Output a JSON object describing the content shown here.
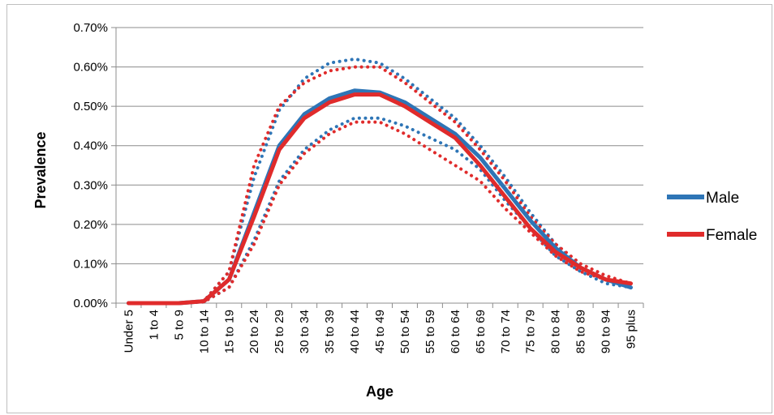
{
  "chart_data": {
    "type": "line",
    "title": "",
    "xlabel": "Age",
    "ylabel": "Prevalence",
    "ylim": [
      0,
      0.007
    ],
    "y_ticks": [
      "0.00%",
      "0.10%",
      "0.20%",
      "0.30%",
      "0.40%",
      "0.50%",
      "0.60%",
      "0.70%"
    ],
    "grid": true,
    "legend_position": "right",
    "categories": [
      "Under 5",
      "1 to 4",
      "5 to 9",
      "10 to 14",
      "15 to 19",
      "20 to 24",
      "25 to 29",
      "30 to 34",
      "35 to 39",
      "40 to 44",
      "45 to 49",
      "50 to 54",
      "55 to 59",
      "60 to 64",
      "65 to 69",
      "70 to 74",
      "75 to 79",
      "80 to 84",
      "85 to 89",
      "90 to 94",
      "95 plus"
    ],
    "series": [
      {
        "name": "Male",
        "color": "#2e75b6",
        "style": "solid",
        "values": [
          0,
          0,
          0,
          5e-05,
          0.0006,
          0.0023,
          0.004,
          0.0048,
          0.0052,
          0.0054,
          0.00535,
          0.0051,
          0.0047,
          0.0043,
          0.0037,
          0.0029,
          0.0021,
          0.0014,
          0.0009,
          0.0006,
          0.0004
        ]
      },
      {
        "name": "Female",
        "color": "#e02b2b",
        "style": "solid",
        "values": [
          0,
          0,
          0,
          5e-05,
          0.0006,
          0.0022,
          0.0039,
          0.0047,
          0.0051,
          0.0053,
          0.0053,
          0.005,
          0.0046,
          0.0042,
          0.0035,
          0.0027,
          0.0019,
          0.0013,
          0.0009,
          0.0006,
          0.0005
        ]
      },
      {
        "color": "#2e75b6",
        "style": "dotted",
        "values": [
          0,
          0,
          0,
          5e-05,
          0.0008,
          0.0032,
          0.0049,
          0.0057,
          0.0061,
          0.0062,
          0.0061,
          0.0057,
          0.0052,
          0.0047,
          0.004,
          0.0032,
          0.0023,
          0.0015,
          0.0009,
          0.0006,
          0.0004
        ]
      },
      {
        "color": "#e02b2b",
        "style": "dotted",
        "values": [
          0,
          0,
          0,
          5e-05,
          0.0008,
          0.0035,
          0.005,
          0.0056,
          0.0059,
          0.006,
          0.006,
          0.0056,
          0.0051,
          0.0046,
          0.0039,
          0.0031,
          0.0022,
          0.0015,
          0.001,
          0.0007,
          0.0005
        ]
      },
      {
        "color": "#2e75b6",
        "style": "dotted",
        "values": [
          0,
          0,
          0,
          3e-05,
          0.0004,
          0.0016,
          0.0031,
          0.0039,
          0.0044,
          0.0047,
          0.0047,
          0.0045,
          0.0042,
          0.0039,
          0.0034,
          0.0026,
          0.0019,
          0.0012,
          0.0008,
          0.0005,
          0.0004
        ]
      },
      {
        "color": "#e02b2b",
        "style": "dotted",
        "values": [
          0,
          0,
          0,
          3e-05,
          0.0004,
          0.0015,
          0.003,
          0.0038,
          0.0043,
          0.0046,
          0.0046,
          0.0043,
          0.0039,
          0.0035,
          0.0031,
          0.0024,
          0.0018,
          0.0012,
          0.0008,
          0.0006,
          0.0005
        ]
      }
    ]
  }
}
